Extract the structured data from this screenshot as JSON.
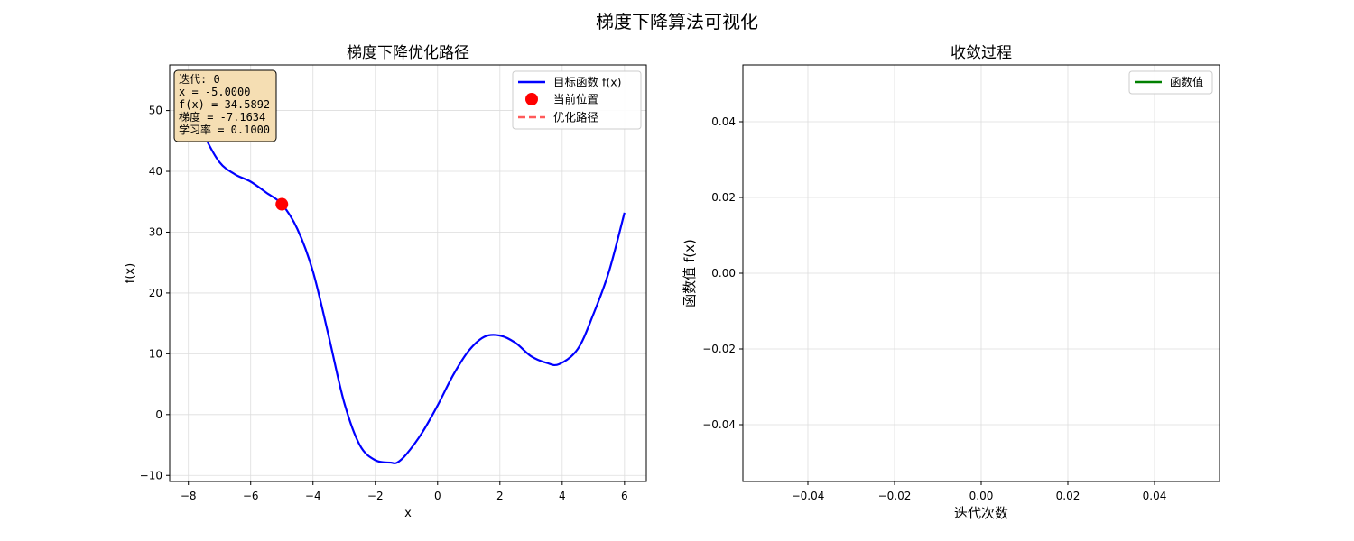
{
  "figure": {
    "suptitle": "梯度下降算法可视化"
  },
  "chart_data": [
    {
      "type": "line",
      "title": "梯度下降优化路径",
      "xlabel": "x",
      "ylabel": "f(x)",
      "xlim": [
        -8.6,
        6.7
      ],
      "ylim": [
        -11,
        57.5
      ],
      "xticks": [
        -8,
        -6,
        -4,
        -2,
        0,
        2,
        4,
        6
      ],
      "yticks": [
        -10,
        0,
        10,
        20,
        30,
        40,
        50
      ],
      "grid": true,
      "legend_position": "top-right",
      "series": [
        {
          "name": "目标函数 f(x)",
          "color": "#0000ff",
          "x": [
            -8.0,
            -7.5,
            -7.0,
            -6.5,
            -6.0,
            -5.5,
            -5.0,
            -4.5,
            -4.0,
            -3.5,
            -3.0,
            -2.5,
            -2.0,
            -1.5,
            -1.3,
            -1.0,
            -0.5,
            0.0,
            0.5,
            1.0,
            1.5,
            2.0,
            2.5,
            3.0,
            3.5,
            3.9,
            4.5,
            5.0,
            5.5,
            6.0
          ],
          "y": [
            52.0,
            46.0,
            41.5,
            39.5,
            38.3,
            36.5,
            34.6,
            30.5,
            23.5,
            13.0,
            2.0,
            -5.0,
            -7.5,
            -7.9,
            -7.9,
            -6.5,
            -3.0,
            1.5,
            6.5,
            10.5,
            12.8,
            13.0,
            11.8,
            9.6,
            8.5,
            8.3,
            10.8,
            16.5,
            23.5,
            33.2
          ]
        },
        {
          "name": "当前位置",
          "color": "#ff0000",
          "marker": "circle",
          "x": [
            -5.0
          ],
          "y": [
            34.5892
          ]
        },
        {
          "name": "优化路径",
          "color": "#ff5a5a",
          "style": "dashed",
          "x": [
            -5.0
          ],
          "y": [
            34.5892
          ]
        }
      ],
      "info_box": {
        "iteration": "迭代: 0",
        "x": "x = -5.0000",
        "fx": "f(x) = 34.5892",
        "gradient": "梯度 = -7.1634",
        "learning_rate": "学习率 = 0.1000",
        "background": "#f5deb3"
      }
    },
    {
      "type": "line",
      "title": "收敛过程",
      "xlabel": "迭代次数",
      "ylabel": "函数值 f(x)",
      "xlim": [
        -0.055,
        0.055
      ],
      "ylim": [
        -0.055,
        0.055
      ],
      "xticks": [
        -0.04,
        -0.02,
        0.0,
        0.02,
        0.04
      ],
      "xtick_labels": [
        "−0.04",
        "−0.02",
        "0.00",
        "0.02",
        "0.04"
      ],
      "yticks": [
        -0.04,
        -0.02,
        0.0,
        0.02,
        0.04
      ],
      "ytick_labels": [
        "−0.04",
        "−0.02",
        "0.00",
        "0.02",
        "0.04"
      ],
      "grid": true,
      "legend_position": "top-right",
      "series": [
        {
          "name": "函数值",
          "color": "#008000",
          "x": [],
          "y": []
        }
      ]
    }
  ]
}
